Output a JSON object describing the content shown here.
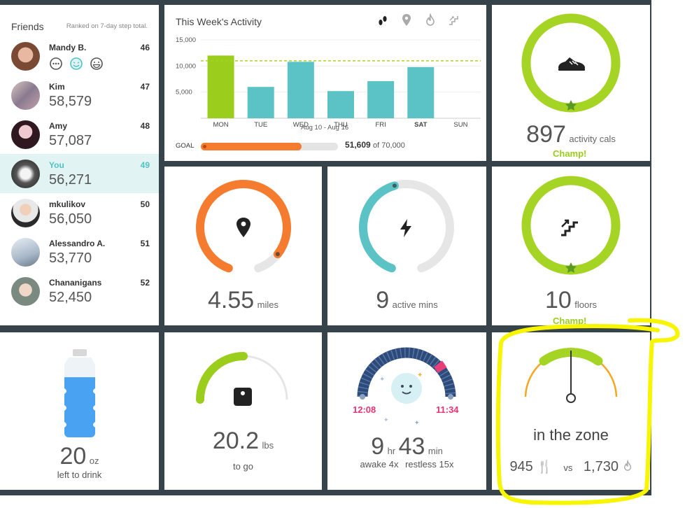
{
  "friends": {
    "title": "Friends",
    "note": "Ranked on 7-day step total.",
    "items": [
      {
        "name": "Mandy B.",
        "rank": "46",
        "steps": ""
      },
      {
        "name": "Kim",
        "rank": "47",
        "steps": "58,579"
      },
      {
        "name": "Amy",
        "rank": "48",
        "steps": "57,087"
      },
      {
        "name": "You",
        "rank": "49",
        "steps": "56,271"
      },
      {
        "name": "mkulikov",
        "rank": "50",
        "steps": "56,050"
      },
      {
        "name": "Alessandro A.",
        "rank": "51",
        "steps": "53,770"
      },
      {
        "name": "Chananigans",
        "rank": "52",
        "steps": "52,450"
      }
    ]
  },
  "activity": {
    "title": "This Week's Activity",
    "date_range": "Aug 10 - Aug 16",
    "goal_label": "GOAL",
    "goal_value": "51,609",
    "goal_total": "of 70,000",
    "goal_progress": 0.737,
    "icons": [
      "footsteps-icon",
      "location-pin-icon",
      "flame-icon",
      "stairs-icon"
    ]
  },
  "chart_data": {
    "type": "bar",
    "categories": [
      "MON",
      "TUE",
      "WED",
      "THU",
      "FRI",
      "SAT",
      "SUN"
    ],
    "values": [
      12000,
      6000,
      10800,
      5200,
      7100,
      9800,
      0
    ],
    "yticks": [
      "15,000",
      "10,000",
      "5,000"
    ],
    "ylim": [
      0,
      15000
    ],
    "goal_line": 11000,
    "xlabel": "Aug 10 - Aug 16",
    "highlight": {
      "MON": "#9acd1c",
      "others": "#5bc3c6"
    }
  },
  "calories": {
    "value": "897",
    "unit": "activity cals",
    "badge": "Champ!",
    "progress": 1.0
  },
  "distance": {
    "value": "4.55",
    "unit": "miles",
    "progress": 0.9
  },
  "active": {
    "value": "9",
    "unit": "active mins",
    "progress": 0.45
  },
  "floors": {
    "value": "10",
    "unit": "floors",
    "badge": "Champ!",
    "progress": 1.0
  },
  "water": {
    "value": "20",
    "unit": "oz",
    "caption": "left to drink",
    "fill": 0.85
  },
  "weight": {
    "value": "20.2",
    "unit": "lbs",
    "caption": "to go",
    "progress": 0.5
  },
  "sleep": {
    "hours": "9",
    "hr_label": "hr",
    "minutes": "43",
    "min_label": "min",
    "start": "12:08",
    "end": "11:34",
    "awake": "awake 4x",
    "restless": "restless 15x"
  },
  "zone": {
    "label": "in the zone",
    "eaten": "945",
    "vs": "vs",
    "burned": "1,730"
  },
  "colors": {
    "green": "#9acd1c",
    "teal": "#5bc3c6",
    "orange": "#f57c2e",
    "grey_track": "#e6e6e6",
    "sleep_blue": "#2d4a78",
    "highlight": "#f7f500"
  }
}
